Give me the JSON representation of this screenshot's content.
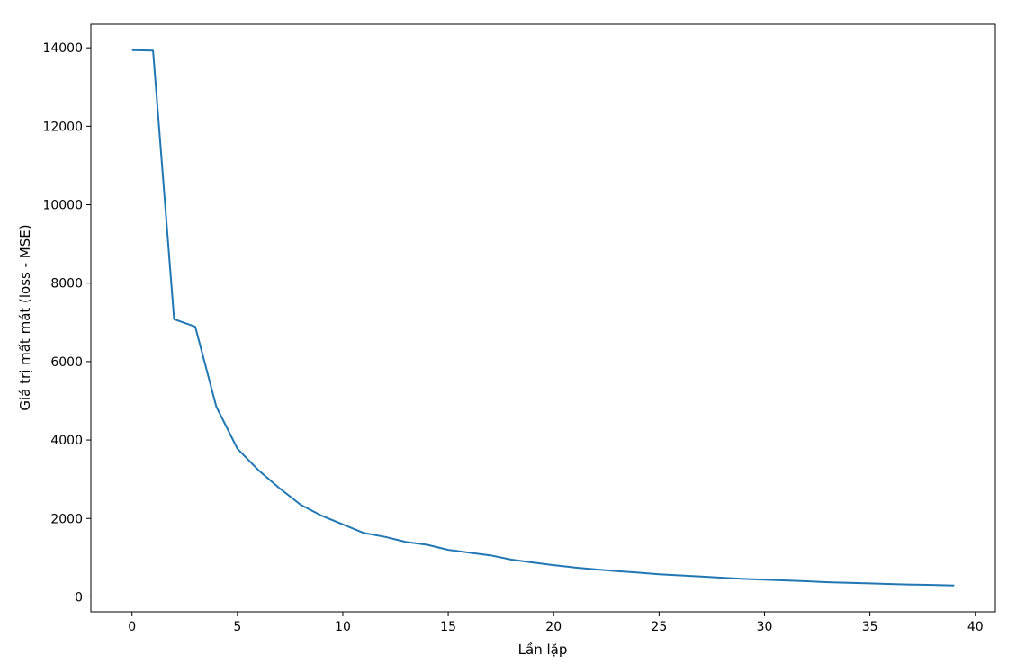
{
  "chart_data": {
    "type": "line",
    "title": "",
    "xlabel": "Lần lặp",
    "ylabel": "Giá trị mất mát (loss - MSE)",
    "xlim": [
      -1.95,
      40.95
    ],
    "ylim": [
      -380,
      14600
    ],
    "xticks": [
      0,
      5,
      10,
      15,
      20,
      25,
      30,
      35,
      40
    ],
    "yticks": [
      0,
      2000,
      4000,
      6000,
      8000,
      10000,
      12000,
      14000
    ],
    "grid": false,
    "color": "#1f77b4",
    "series": [
      {
        "x": [
          0,
          1,
          2,
          3,
          4,
          5,
          6,
          7,
          8,
          9,
          10,
          11,
          12,
          13,
          14,
          15,
          16,
          17,
          18,
          19,
          20,
          21,
          22,
          23,
          24,
          25,
          26,
          27,
          28,
          29,
          30,
          31,
          32,
          33,
          34,
          35,
          36,
          37,
          38,
          39
        ],
        "values": [
          13940,
          13930,
          7080,
          6890,
          4850,
          3780,
          3230,
          2770,
          2350,
          2070,
          1850,
          1630,
          1530,
          1400,
          1330,
          1200,
          1130,
          1060,
          950,
          880,
          810,
          750,
          700,
          660,
          620,
          580,
          550,
          520,
          490,
          460,
          440,
          420,
          400,
          375,
          360,
          345,
          330,
          315,
          305,
          290
        ]
      }
    ]
  }
}
